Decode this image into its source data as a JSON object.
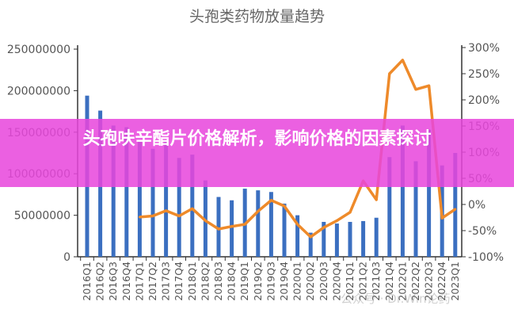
{
  "chart_data": {
    "type": "bar+line",
    "title": "头孢类药物放量趋势",
    "categories": [
      "2016Q1",
      "2016Q2",
      "2016Q3",
      "2016Q4",
      "2017Q1",
      "2017Q2",
      "2017Q3",
      "2017Q4",
      "2018Q1",
      "2018Q2",
      "2018Q3",
      "2018Q4",
      "2019Q1",
      "2019Q2",
      "2019Q3",
      "2019Q4",
      "2020Q1",
      "2020Q2",
      "2020Q3",
      "2020Q4",
      "2021Q1",
      "2021Q2",
      "2021Q3",
      "2021Q4",
      "2022Q1",
      "2022Q2",
      "2022Q3",
      "2022Q4",
      "2023Q1"
    ],
    "series": [
      {
        "type": "bar",
        "axis": "left",
        "color": "#3b6fc0",
        "values": [
          194000000,
          176000000,
          158000000,
          156000000,
          140000000,
          130000000,
          139000000,
          119000000,
          123000000,
          92000000,
          72000000,
          68000000,
          82000000,
          80000000,
          78000000,
          64000000,
          50000000,
          29000000,
          42000000,
          40000000,
          42000000,
          43000000,
          47000000,
          120000000,
          158000000,
          115000000,
          153000000,
          110000000,
          125000000
        ]
      },
      {
        "type": "line",
        "axis": "right",
        "color": "#ee8a2a",
        "values": [
          null,
          null,
          null,
          null,
          -24,
          -22,
          -12,
          -22,
          -8,
          -31,
          -47,
          -42,
          -38,
          -13,
          8,
          -3,
          -38,
          -62,
          -44,
          -31,
          -15,
          45,
          9,
          250,
          276,
          220,
          227,
          -26,
          -9
        ]
      }
    ],
    "y_left": {
      "ylim": [
        0,
        250000000
      ],
      "ticks": [
        "0",
        "50000000",
        "100000000",
        "150000000",
        "200000000",
        "250000000"
      ]
    },
    "y_right": {
      "ylim": [
        -100,
        300
      ],
      "ticks": [
        "-100%",
        "-50%",
        "0%",
        "50%",
        "100%",
        "150%",
        "200%",
        "250%",
        "300%"
      ]
    },
    "grid": false,
    "legend": "none"
  },
  "overlay": {
    "banner_text": "头孢呋辛酯片价格解析，影响价格的因素探讨",
    "banner_color": "#e846dc"
  },
  "watermark": "公众号 · Dr.Win论药"
}
